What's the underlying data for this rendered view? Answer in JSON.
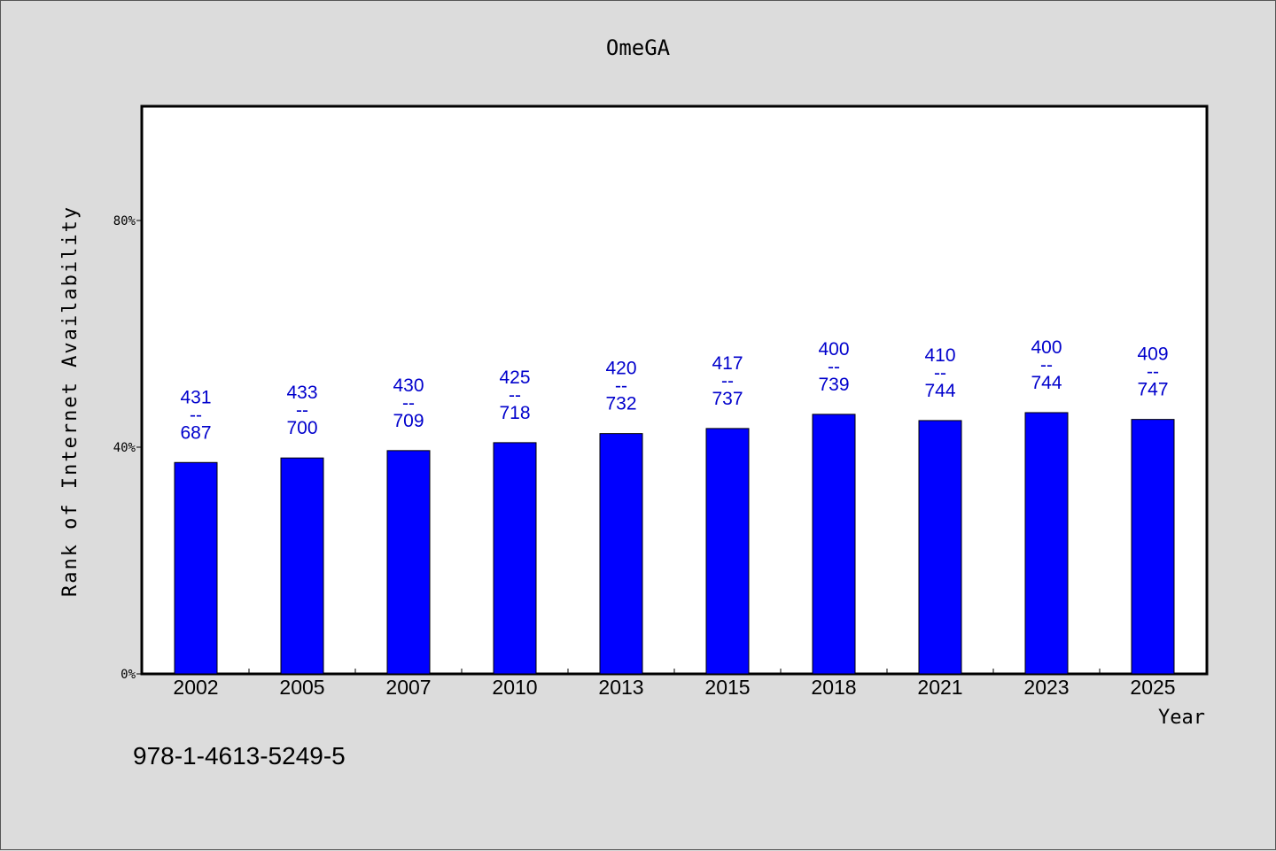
{
  "chart_data": {
    "type": "bar",
    "title": "OmeGA",
    "xlabel": "Year",
    "ylabel": "Rank of Internet Availability",
    "ylim": [
      0,
      100
    ],
    "yticks": [
      {
        "value": 0,
        "label": "0%"
      },
      {
        "value": 40,
        "label": "40%"
      },
      {
        "value": 80,
        "label": "80%"
      }
    ],
    "categories": [
      "2002",
      "2005",
      "2007",
      "2010",
      "2013",
      "2015",
      "2018",
      "2021",
      "2023",
      "2025"
    ],
    "values": [
      37.3,
      38.1,
      39.4,
      40.8,
      42.4,
      43.3,
      45.8,
      44.7,
      46.1,
      44.9
    ],
    "value_labels": [
      {
        "top": "431",
        "sep": "--",
        "bottom": "687"
      },
      {
        "top": "433",
        "sep": "--",
        "bottom": "700"
      },
      {
        "top": "430",
        "sep": "--",
        "bottom": "709"
      },
      {
        "top": "425",
        "sep": "--",
        "bottom": "718"
      },
      {
        "top": "420",
        "sep": "--",
        "bottom": "732"
      },
      {
        "top": "417",
        "sep": "--",
        "bottom": "737"
      },
      {
        "top": "400",
        "sep": "--",
        "bottom": "739"
      },
      {
        "top": "410",
        "sep": "--",
        "bottom": "744"
      },
      {
        "top": "400",
        "sep": "--",
        "bottom": "744"
      },
      {
        "top": "409",
        "sep": "--",
        "bottom": "747"
      }
    ],
    "bar_color": "#0000ff",
    "label_color": "#0000cc",
    "grid": false,
    "legend": "none"
  },
  "footer_text": "978-1-4613-5249-5"
}
